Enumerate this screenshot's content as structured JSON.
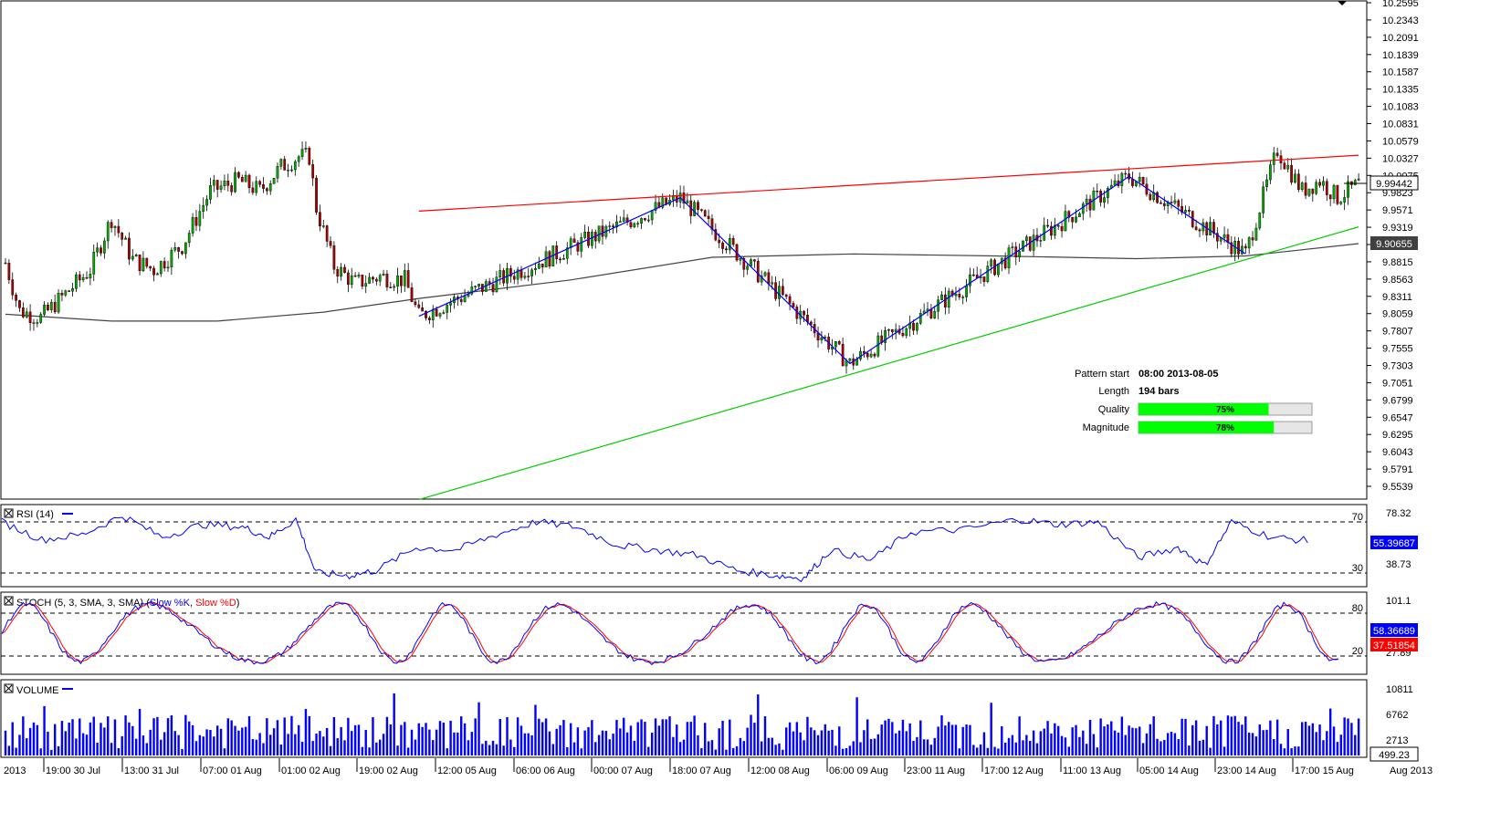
{
  "chart_data": [
    {
      "type": "candlestick",
      "name": "price",
      "y_range": [
        9.527,
        10.2595
      ],
      "y_ticks": [
        "10.2595",
        "10.2343",
        "10.2091",
        "10.1839",
        "10.1587",
        "10.1335",
        "10.1083",
        "10.0831",
        "10.0579",
        "10.0327",
        "10.0075",
        "9.9823",
        "9.9571",
        "9.9319",
        "9.9067",
        "9.8815",
        "9.8563",
        "9.8311",
        "9.8059",
        "9.7807",
        "9.7555",
        "9.7303",
        "9.7051",
        "9.6799",
        "9.6547",
        "9.6295",
        "9.6043",
        "9.5791",
        "9.5539"
      ],
      "last_price": "9.99442",
      "ma_value": "9.90655",
      "bar_count": 245,
      "anchors": [
        [
          0,
          9.88
        ],
        [
          4,
          9.81
        ],
        [
          10,
          9.8
        ],
        [
          16,
          9.83
        ],
        [
          24,
          9.87
        ],
        [
          30,
          9.945
        ],
        [
          36,
          9.885
        ],
        [
          42,
          9.87
        ],
        [
          50,
          9.905
        ],
        [
          58,
          9.985
        ],
        [
          66,
          10.0
        ],
        [
          72,
          9.985
        ],
        [
          78,
          10.02
        ],
        [
          83,
          10.035
        ],
        [
          86,
          10.035
        ],
        [
          88,
          9.96
        ],
        [
          93,
          9.875
        ],
        [
          99,
          9.85
        ],
        [
          106,
          9.86
        ],
        [
          113,
          9.855
        ],
        [
          119,
          9.835
        ],
        [
          125,
          9.865
        ],
        [
          133,
          9.845
        ],
        [
          140,
          9.855
        ],
        [
          148,
          9.885
        ],
        [
          156,
          9.945
        ],
        [
          164,
          9.955
        ],
        [
          172,
          9.93
        ],
        [
          180,
          9.955
        ],
        [
          188,
          9.96
        ],
        [
          195,
          9.965
        ],
        [
          201,
          9.925
        ],
        [
          207,
          9.865
        ],
        [
          213,
          9.83
        ],
        [
          221,
          9.825
        ],
        [
          227,
          9.82
        ],
        [
          231,
          9.795
        ],
        [
          235,
          9.755
        ],
        [
          242,
          9.735
        ],
        [
          247,
          9.805
        ],
        [
          253,
          9.825
        ],
        [
          259,
          9.805
        ]
      ],
      "pattern_points": [
        [
          117,
          9.802
        ],
        [
          191,
          9.975
        ],
        [
          239,
          9.733
        ],
        [
          318,
          10.006
        ],
        [
          351,
          9.893
        ]
      ],
      "pattern_points_note": "x as bar index",
      "resistance_line": [
        [
          117,
          9.9555
        ],
        [
          383,
          10.037
        ]
      ],
      "support_line": [
        [
          117,
          9.5345
        ],
        [
          383,
          9.9325
        ]
      ],
      "moving_average": [
        [
          0,
          9.805
        ],
        [
          30,
          9.795
        ],
        [
          60,
          9.795
        ],
        [
          90,
          9.808
        ],
        [
          117,
          9.828
        ],
        [
          160,
          9.855
        ],
        [
          200,
          9.888
        ],
        [
          240,
          9.893
        ],
        [
          280,
          9.89
        ],
        [
          320,
          9.886
        ],
        [
          351,
          9.89
        ],
        [
          383,
          9.908
        ]
      ]
    },
    {
      "type": "line",
      "name": "rsi",
      "title": "RSI (14)",
      "y_ticks": [
        "78.32",
        "38.73"
      ],
      "levels": [
        "70",
        "30"
      ],
      "last_value": "55.39687",
      "values_note": "sampled RSI values along x (0-1)",
      "values": [
        [
          0,
          70
        ],
        [
          0.03,
          56
        ],
        [
          0.06,
          60
        ],
        [
          0.09,
          75
        ],
        [
          0.12,
          58
        ],
        [
          0.15,
          68
        ],
        [
          0.18,
          66
        ],
        [
          0.2,
          58
        ],
        [
          0.22,
          72
        ],
        [
          0.235,
          30
        ],
        [
          0.26,
          28
        ],
        [
          0.28,
          32
        ],
        [
          0.31,
          50
        ],
        [
          0.34,
          48
        ],
        [
          0.37,
          60
        ],
        [
          0.4,
          70
        ],
        [
          0.43,
          66
        ],
        [
          0.46,
          52
        ],
        [
          0.49,
          48
        ],
        [
          0.52,
          44
        ],
        [
          0.55,
          32
        ],
        [
          0.58,
          28
        ],
        [
          0.6,
          26
        ],
        [
          0.62,
          48
        ],
        [
          0.65,
          40
        ],
        [
          0.68,
          62
        ],
        [
          0.72,
          64
        ],
        [
          0.76,
          72
        ],
        [
          0.79,
          68
        ],
        [
          0.82,
          70
        ],
        [
          0.85,
          42
        ],
        [
          0.88,
          50
        ],
        [
          0.9,
          36
        ],
        [
          0.92,
          70
        ],
        [
          0.95,
          58
        ],
        [
          0.98,
          55
        ]
      ]
    },
    {
      "type": "line",
      "name": "stochastic",
      "title": "STOCH (5, 3, SMA, 3, SMA)",
      "series": [
        {
          "name": "Slow %K",
          "color": "#0000ff",
          "last_value": "58.36689"
        },
        {
          "name": "Slow %D",
          "color": "#ff0000",
          "last_value": "37.51854"
        }
      ],
      "y_ticks": [
        "101.1",
        "27.89"
      ],
      "levels": [
        "80",
        "20"
      ],
      "wave_note": "oscillating %K/%D between 10 and 95"
    },
    {
      "type": "bar",
      "name": "volume",
      "title": "VOLUME",
      "y_ticks": [
        "10811",
        "6762",
        "2713"
      ],
      "last_value": "499.23"
    }
  ],
  "x_labels": [
    "2013",
    "19:00 30 Jul",
    "13:00 31 Jul",
    "07:00 01 Aug",
    "01:00 02 Aug",
    "19:00 02 Aug",
    "12:00 05 Aug",
    "06:00 06 Aug",
    "00:00 07 Aug",
    "18:00 07 Aug",
    "12:00 08 Aug",
    "06:00 09 Aug",
    "23:00 11 Aug",
    "17:00 12 Aug",
    "11:00 13 Aug",
    "05:00 14 Aug",
    "23:00 14 Aug",
    "17:00 15 Aug",
    "Aug 2013"
  ],
  "pattern_info": {
    "start_label": "Pattern start",
    "start_value": "08:00 2013-08-05",
    "length_label": "Length",
    "length_value": "194 bars",
    "quality_label": "Quality",
    "quality_value": "75%",
    "quality_pct": 75,
    "magnitude_label": "Magnitude",
    "magnitude_value": "78%",
    "magnitude_pct": 78
  },
  "colors": {
    "bull": "#00aa00",
    "bear": "#aa0000",
    "resistance": "#ff0000",
    "support": "#00cc00",
    "pattern": "#0000ff",
    "ma": "#444444",
    "volume": "#0000ff",
    "gauge_fill": "#00ff00"
  }
}
